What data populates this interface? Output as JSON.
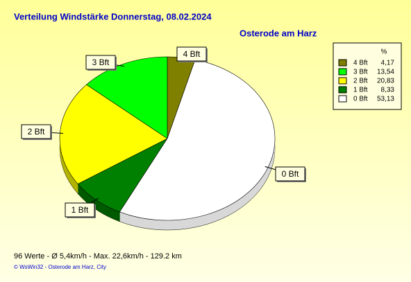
{
  "chart_data": {
    "type": "pie",
    "title": "Verteilung Windstärke  Donnerstag, 08.02.2024",
    "subtitle": "Osterode am Harz",
    "categories": [
      "4 Bft",
      "3 Bft",
      "2 Bft",
      "1 Bft",
      "0 Bft"
    ],
    "values": [
      4.17,
      13.54,
      20.83,
      8.33,
      53.13
    ],
    "value_labels": [
      "4,17",
      "13,54",
      "20,83",
      "8,33",
      "53,13"
    ],
    "colors": [
      "#808000",
      "#00ff00",
      "#ffff00",
      "#008000",
      "#ffffff"
    ],
    "legend_header": "%",
    "legend": "right",
    "footer": "96 Werte   -   Ø 5,4km/h  -  Max. 22,6km/h   -   129.2 km",
    "copyright": "© WsWin32  -  Osterode am Harz, City"
  }
}
